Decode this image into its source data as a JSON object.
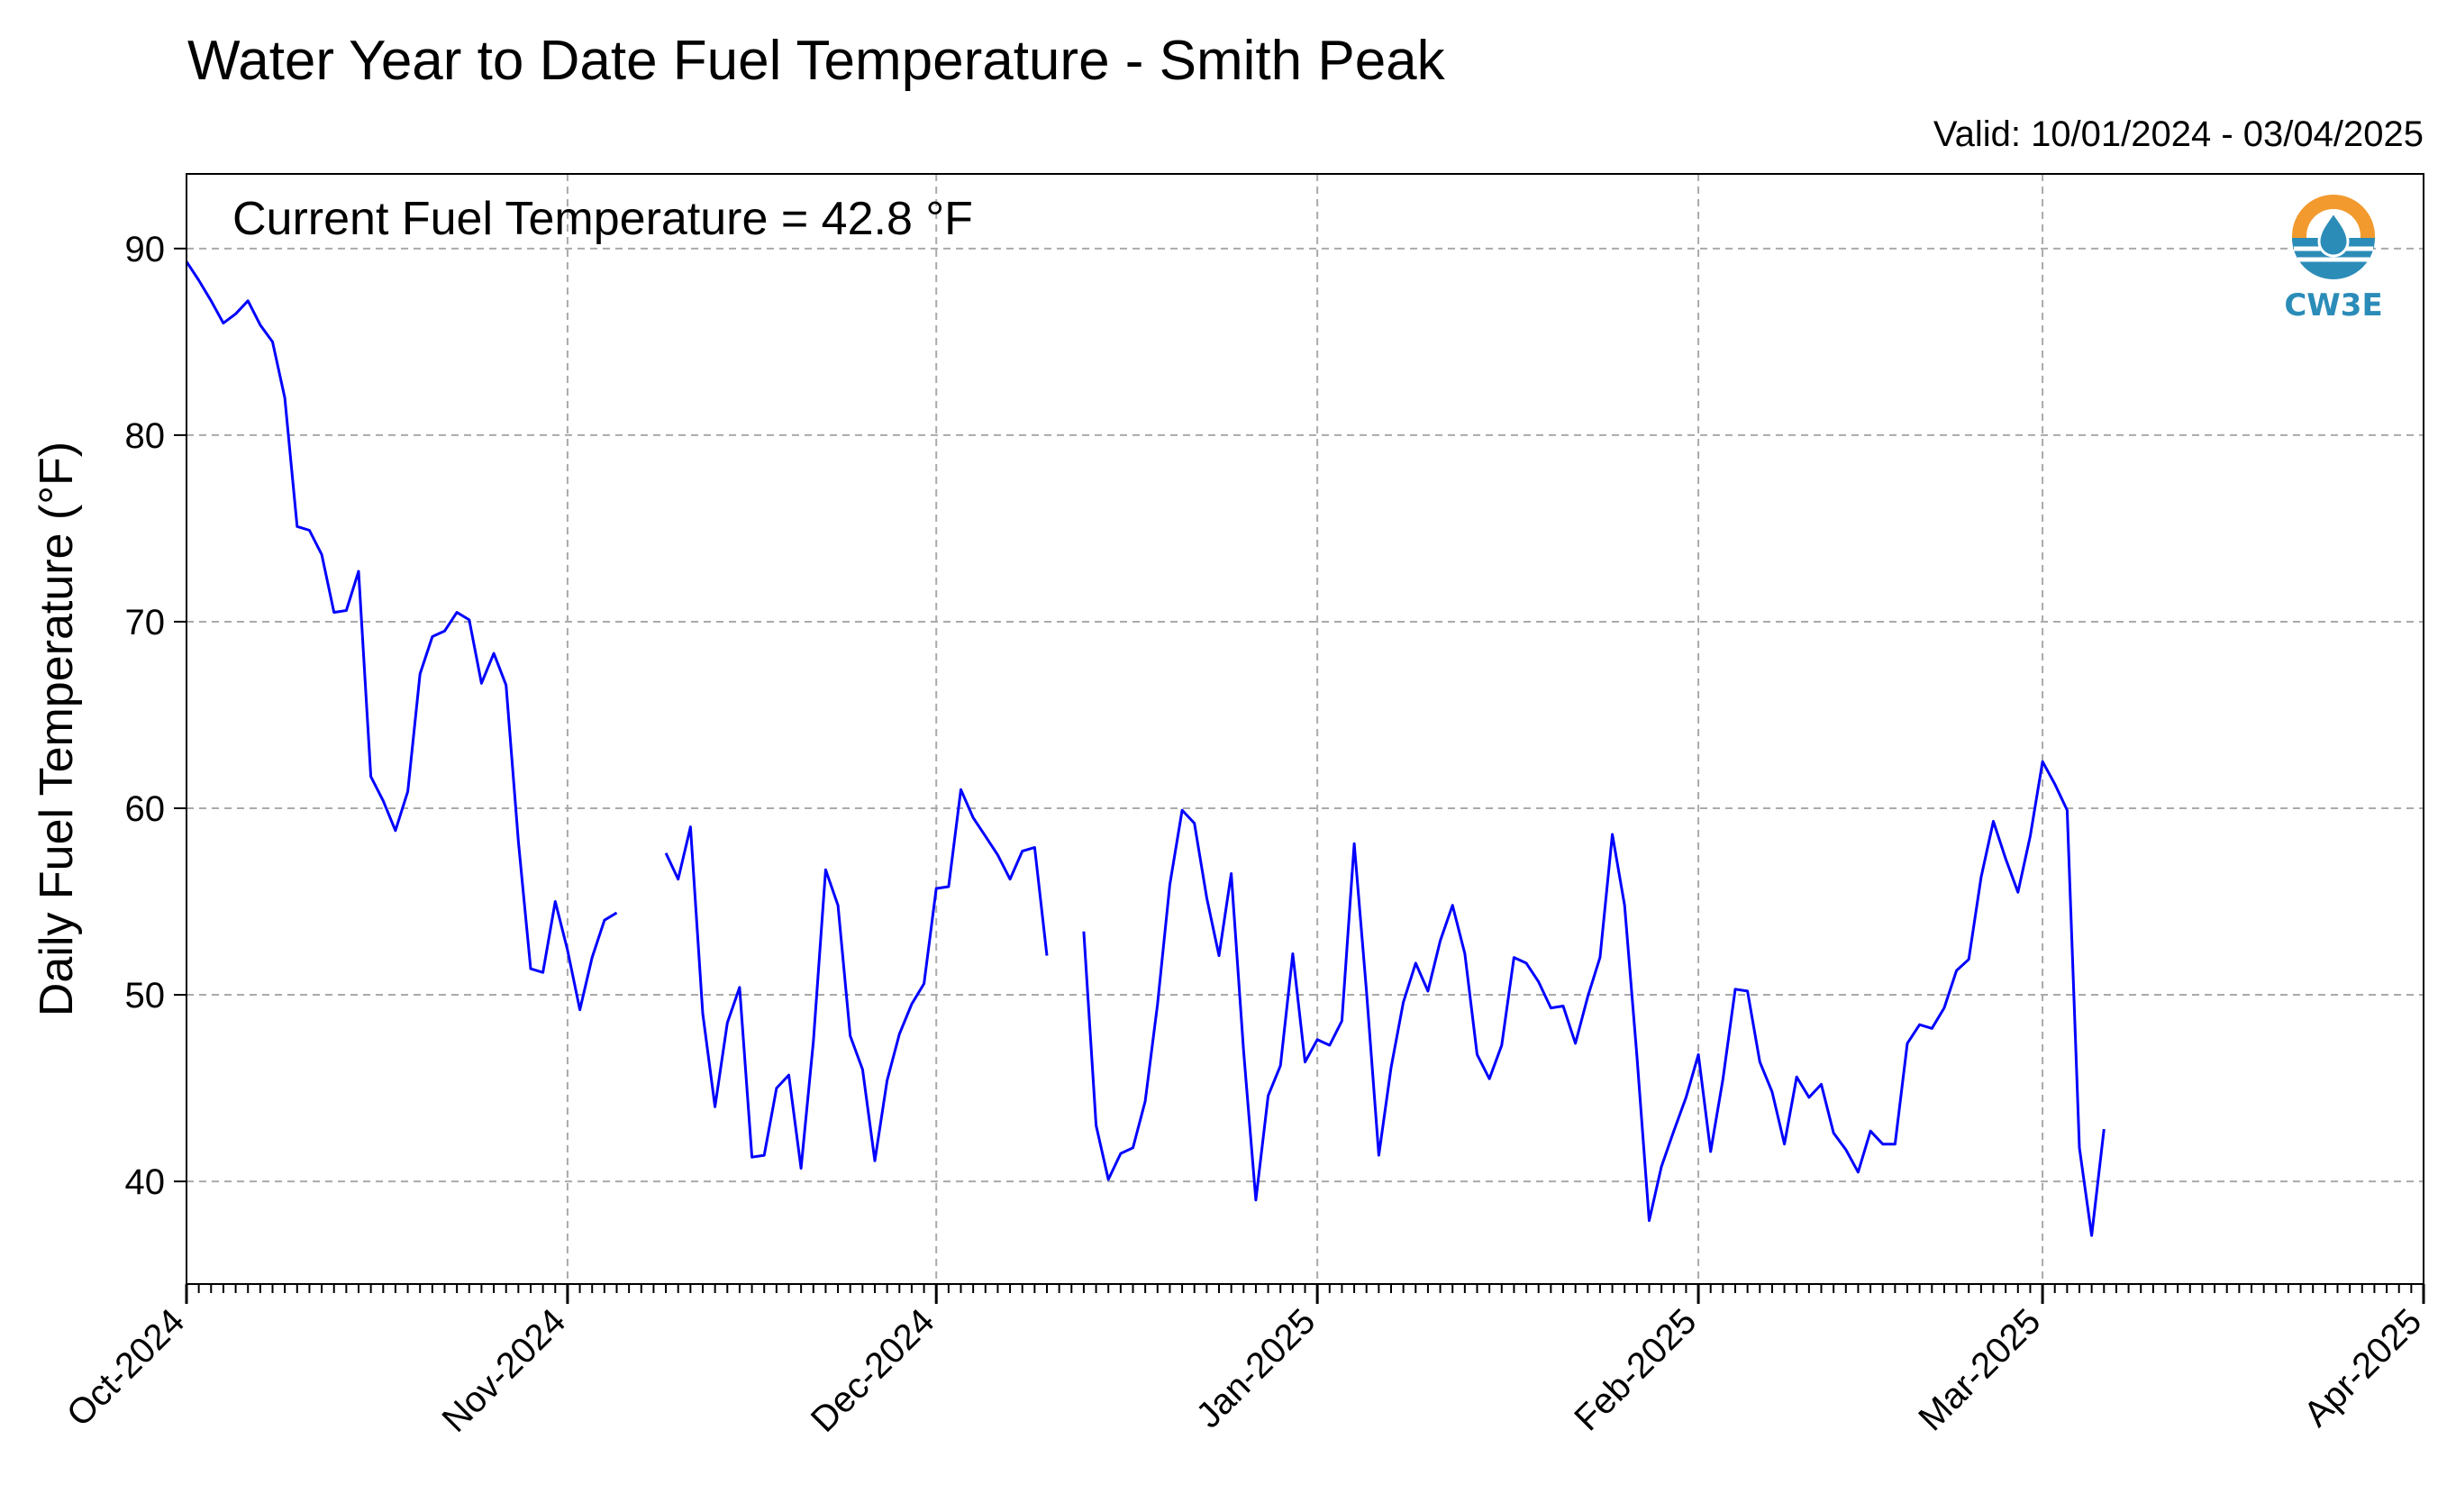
{
  "title": "Water Year to Date Fuel Temperature - Smith Peak",
  "valid_text": "Valid: 10/01/2024 - 03/04/2025",
  "current_text": "Current Fuel Temperature = 42.8 °F",
  "logo_text": "CW3E",
  "colors": {
    "line": "#0000ff",
    "grid": "#aaaaaa",
    "logo_orange": "#f29a2e",
    "logo_blue": "#2b8cb8"
  },
  "chart_data": {
    "type": "line",
    "title": "Water Year to Date Fuel Temperature - Smith Peak",
    "xlabel": "",
    "ylabel": "Daily Fuel Temperature (°F)",
    "x_start": "2024-10-01",
    "x_end": "2025-04-01",
    "ylim": [
      34.5,
      94
    ],
    "yticks": [
      40,
      50,
      60,
      70,
      80,
      90
    ],
    "xticks": [
      {
        "date": "2024-10-01",
        "label": "Oct-2024"
      },
      {
        "date": "2024-11-01",
        "label": "Nov-2024"
      },
      {
        "date": "2024-12-01",
        "label": "Dec-2024"
      },
      {
        "date": "2025-01-01",
        "label": "Jan-2025"
      },
      {
        "date": "2025-02-01",
        "label": "Feb-2025"
      },
      {
        "date": "2025-03-01",
        "label": "Mar-2025"
      },
      {
        "date": "2025-04-01",
        "label": "Apr-2025"
      }
    ],
    "grid": true,
    "series": [
      {
        "start_date": "2024-10-01",
        "values": [
          89.3,
          88.3,
          87.2,
          86.0,
          86.5,
          87.2,
          85.9,
          85.0,
          82.0,
          75.1,
          74.9,
          73.6,
          70.5,
          70.6,
          72.7,
          61.7,
          60.4,
          58.8,
          60.9,
          67.2,
          69.2,
          69.5,
          70.5,
          70.1,
          66.7,
          68.3,
          66.6,
          58.2,
          51.4,
          51.2,
          55.0,
          52.4,
          49.2,
          52.0,
          54.0,
          54.4,
          null,
          null,
          null,
          57.6,
          56.2,
          59.0,
          49.0,
          44.0,
          48.5,
          50.4,
          41.3,
          41.4,
          45.0,
          45.7,
          40.7,
          47.5,
          56.7,
          54.8,
          47.8,
          46.0,
          41.1,
          45.4,
          47.9,
          49.5,
          50.6,
          55.7,
          55.8,
          61.0,
          59.5,
          58.5,
          57.5,
          56.2,
          57.7,
          57.9,
          52.1,
          null,
          null,
          53.4,
          43.0,
          40.1,
          41.5,
          41.8,
          44.3,
          49.5,
          55.9,
          59.9,
          59.2,
          55.2,
          52.1,
          56.5,
          47.0,
          39.0,
          44.6,
          46.2,
          52.2,
          46.4,
          47.6,
          47.3,
          48.6,
          58.1,
          50.2,
          41.4,
          46.1,
          49.6,
          51.7,
          50.2,
          52.9,
          54.8,
          52.2,
          46.8,
          45.5,
          47.3,
          52.0,
          51.7,
          50.7,
          49.3,
          49.4,
          47.4,
          49.9,
          52.0,
          58.6,
          54.8,
          46.7,
          37.9,
          40.8,
          42.7,
          44.5,
          46.8,
          41.6,
          45.5,
          50.3,
          50.2,
          46.4,
          44.8,
          42.0,
          45.6,
          44.5,
          45.2,
          42.6,
          41.7,
          40.5,
          42.7,
          42.0,
          42.0,
          47.4,
          48.4,
          48.2,
          49.3,
          51.3,
          51.9,
          56.3,
          59.3,
          57.3,
          55.5,
          58.5,
          62.5,
          61.3,
          59.9,
          41.8,
          37.1,
          42.8
        ]
      }
    ]
  }
}
